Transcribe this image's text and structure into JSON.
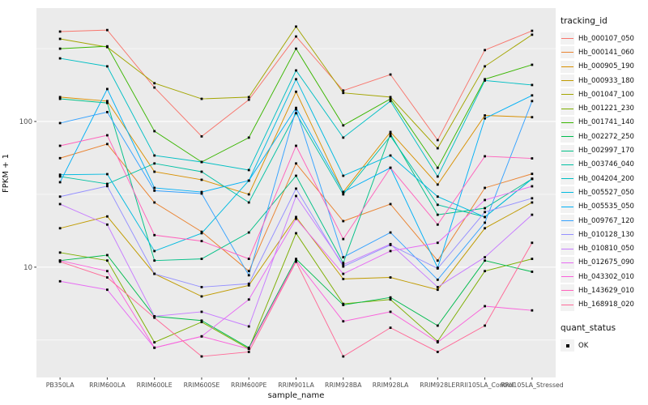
{
  "chart_data": {
    "type": "line",
    "title": "",
    "xlabel": "sample_name",
    "ylabel": "FPKM + 1",
    "x_categories": [
      "PB350LA",
      "RRIM600LA",
      "RRIM600LE",
      "RRIM600SE",
      "RRIM600PE",
      "RRIM901LA",
      "RRIM928BA",
      "RRIM928LA",
      "RRIM928LE",
      "RRII105LA_Control",
      "RRII105LA_Stressed"
    ],
    "y_scale": "log10",
    "y_ticks": [
      100,
      10
    ],
    "y_tick_labels": [
      "100",
      "10"
    ],
    "y_minor_gridlines": [
      316.2,
      31.62,
      3.162
    ],
    "ylim": [
      1.75,
      600
    ],
    "grid": true,
    "legend_position": "right",
    "panel_bg": "#EBEBEB",
    "grid_color": "#FFFFFF",
    "point_color": "#000000",
    "axis_text_color": "#4D4D4D",
    "legend": {
      "title": "tracking_id"
    },
    "quant_legend": {
      "title": "quant_status",
      "items": [
        {
          "label": "OK",
          "symbol": "black-square-point"
        }
      ]
    },
    "series": [
      {
        "name": "Hb_000107_050",
        "color": "#F8766D",
        "values": [
          414,
          424,
          171,
          79,
          141,
          383,
          163,
          210,
          74.5,
          309,
          419
        ]
      },
      {
        "name": "Hb_000141_060",
        "color": "#EA8331",
        "values": [
          56,
          70,
          27.8,
          17.5,
          9.4,
          51.5,
          20.7,
          27.1,
          11.1,
          35,
          43.7
        ]
      },
      {
        "name": "Hb_000905_190",
        "color": "#D89000",
        "values": [
          147,
          138,
          45.2,
          39.8,
          31.6,
          160,
          32.8,
          84.7,
          36.9,
          110,
          107
        ]
      },
      {
        "name": "Hb_000933_180",
        "color": "#C09B00",
        "values": [
          18.5,
          22.3,
          9.0,
          6.3,
          7.5,
          22.1,
          8.3,
          8.5,
          7.0,
          18.5,
          27.8
        ]
      },
      {
        "name": "Hb_001047_100",
        "color": "#A3A500",
        "values": [
          369,
          324,
          183,
          143,
          147,
          448,
          157,
          147,
          65.5,
          239,
          394
        ]
      },
      {
        "name": "Hb_001221_230",
        "color": "#7CAE00",
        "values": [
          12.6,
          11.1,
          3.05,
          4.2,
          2.75,
          17.1,
          5.6,
          6.0,
          3.1,
          9.4,
          11.4
        ]
      },
      {
        "name": "Hb_001741_140",
        "color": "#39B600",
        "values": [
          316,
          328,
          85.8,
          52.7,
          77.5,
          316,
          94,
          143,
          48.1,
          195,
          245
        ]
      },
      {
        "name": "Hb_002272_250",
        "color": "#00BB4E",
        "values": [
          11.1,
          12.1,
          4.6,
          4.3,
          2.8,
          11.4,
          5.5,
          6.2,
          3.97,
          11.1,
          9.3
        ]
      },
      {
        "name": "Hb_002997_170",
        "color": "#00C087",
        "values": [
          143,
          134,
          11.1,
          11.4,
          17.3,
          42.4,
          10.7,
          82,
          22.9,
          25.4,
          40.4
        ]
      },
      {
        "name": "Hb_003746_040",
        "color": "#00C1A3",
        "values": [
          41.9,
          37.3,
          51.5,
          45.2,
          27.8,
          114,
          31.6,
          79.4,
          26.8,
          22.1,
          40.4
        ]
      },
      {
        "name": "Hb_004204_200",
        "color": "#00BFC4",
        "values": [
          271,
          239,
          58.4,
          52.7,
          46.4,
          224,
          77.5,
          138,
          41.9,
          191,
          178
        ]
      },
      {
        "name": "Hb_005527_050",
        "color": "#00BAE0",
        "values": [
          43.1,
          43.5,
          12.9,
          17.1,
          39.3,
          195,
          42.4,
          58.4,
          30.5,
          22.1,
          40.4
        ]
      },
      {
        "name": "Hb_005535_050",
        "color": "#00B0F6",
        "values": [
          38.3,
          167,
          35.0,
          32.8,
          39.3,
          124,
          32.8,
          48.1,
          9.9,
          105,
          151
        ]
      },
      {
        "name": "Hb_009767_120",
        "color": "#35A2FF",
        "values": [
          97.5,
          116,
          33.5,
          32.0,
          8.8,
          121,
          11.7,
          17.3,
          8.2,
          20.2,
          138
        ]
      },
      {
        "name": "Hb_010128_130",
        "color": "#9590FF",
        "values": [
          30.5,
          36.0,
          9.0,
          7.3,
          7.7,
          34.6,
          10.1,
          14.2,
          9.8,
          23.9,
          29.7
        ]
      },
      {
        "name": "Hb_010810_050",
        "color": "#C77CFF",
        "values": [
          27.1,
          19.6,
          4.6,
          4.94,
          3.92,
          30.8,
          10.4,
          14.4,
          7.3,
          11.7,
          22.9
        ]
      },
      {
        "name": "Hb_012675_090",
        "color": "#E76BF3",
        "values": [
          8.0,
          7.0,
          2.8,
          3.35,
          6.0,
          21.5,
          9.0,
          12.9,
          14.7,
          28.9,
          35.9
        ]
      },
      {
        "name": "Hb_043302_010",
        "color": "#FA62DB",
        "values": [
          11.1,
          9.4,
          2.8,
          3.35,
          2.75,
          11.1,
          4.25,
          4.94,
          3.05,
          5.4,
          5.05
        ]
      },
      {
        "name": "Hb_143629_010",
        "color": "#FF62BC",
        "values": [
          68.1,
          80.4,
          16.6,
          15.1,
          11.4,
          68.1,
          15.6,
          48.1,
          19.6,
          57.7,
          55.8
        ]
      },
      {
        "name": "Hb_168918_020",
        "color": "#FF6A98",
        "values": [
          10.9,
          8.5,
          4.5,
          2.44,
          2.62,
          10.9,
          2.44,
          3.84,
          2.62,
          3.97,
          14.7
        ]
      }
    ]
  }
}
